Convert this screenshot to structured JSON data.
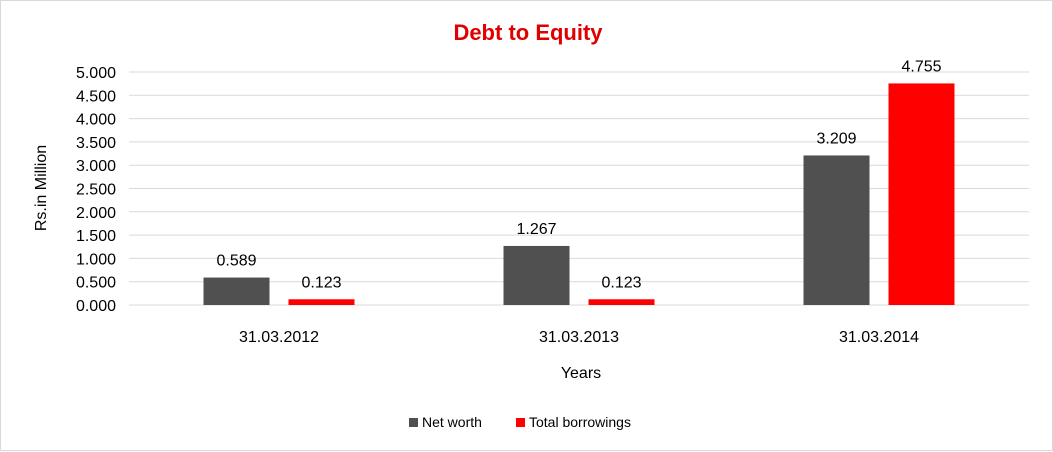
{
  "chart_data": {
    "type": "bar",
    "title": "Debt to Equity",
    "xlabel": "Years",
    "ylabel": "Rs.in Million",
    "categories": [
      "31.03.2012",
      "31.03.2013",
      "31.03.2014"
    ],
    "series": [
      {
        "name": "Net worth",
        "color": "#505050",
        "values": [
          0.589,
          1.267,
          3.209
        ],
        "labels": [
          "0.589",
          "1.267",
          "3.209"
        ]
      },
      {
        "name": "Total borrowings",
        "color": "#ff0000",
        "values": [
          0.123,
          0.123,
          4.755
        ],
        "labels": [
          "0.123",
          "0.123",
          "4.755"
        ]
      }
    ],
    "ylim": [
      0,
      5
    ],
    "yticks": [
      0,
      0.5,
      1,
      1.5,
      2,
      2.5,
      3,
      3.5,
      4,
      4.5,
      5
    ],
    "ytick_labels": [
      "0.000",
      "0.500",
      "1.000",
      "1.500",
      "2.000",
      "2.500",
      "3.000",
      "3.500",
      "4.000",
      "4.500",
      "5.000"
    ],
    "grid": true,
    "legend_position": "bottom"
  }
}
